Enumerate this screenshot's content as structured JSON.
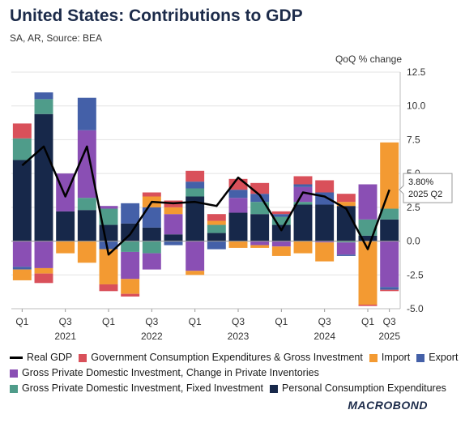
{
  "title": "United States: Contributions to GDP",
  "subtitle": "SA, AR, Source: BEA",
  "brand": "MACROBOND",
  "chart_data": {
    "type": "bar",
    "stacked": true,
    "ylabel": "QoQ % change",
    "ylim": [
      -5.0,
      12.5
    ],
    "yticks": [
      "12.5",
      "10.0",
      "7.5",
      "5.0",
      "2.5",
      "0.0",
      "-2.5",
      "-5.0"
    ],
    "ytick_values": [
      12.5,
      10.0,
      7.5,
      5.0,
      2.5,
      0.0,
      -2.5,
      -5.0
    ],
    "categories": [
      "2021 Q1",
      "2021 Q2",
      "2021 Q3",
      "2021 Q4",
      "2022 Q1",
      "2022 Q2",
      "2022 Q3",
      "2022 Q4",
      "2023 Q1",
      "2023 Q2",
      "2023 Q3",
      "2023 Q4",
      "2024 Q1",
      "2024 Q2",
      "2024 Q3",
      "2024 Q4",
      "2025 Q1",
      "2025 Q2"
    ],
    "x_tick_labels": [
      "Q1",
      "Q3",
      "Q1",
      "Q3",
      "Q1",
      "Q3",
      "Q1",
      "Q3",
      "Q1",
      "Q3"
    ],
    "x_tick_indices": [
      0,
      2,
      4,
      6,
      8,
      10,
      12,
      14,
      16,
      17
    ],
    "year_labels": [
      "2021",
      "2022",
      "2023",
      "2024",
      "2025"
    ],
    "year_indices": [
      2,
      6,
      10,
      14,
      17
    ],
    "series": [
      {
        "name": "Personal Consumption Expenditures",
        "color": "#17284a",
        "values": [
          6.0,
          9.4,
          2.2,
          2.3,
          1.2,
          1.3,
          1.0,
          0.5,
          3.3,
          0.6,
          2.1,
          2.0,
          1.2,
          2.7,
          2.7,
          2.6,
          0.4,
          1.6
        ]
      },
      {
        "name": "Gross Private Domestic Investment, Fixed Investment",
        "color": "#4f9c8a",
        "values": [
          1.6,
          1.1,
          0.0,
          0.9,
          1.2,
          -0.8,
          -0.9,
          0.0,
          0.6,
          0.6,
          0.0,
          0.9,
          0.6,
          0.2,
          0.0,
          -0.1,
          1.2,
          0.8
        ]
      },
      {
        "name": "Gross Private Domestic Investment, Change in Private Inventories",
        "color": "#8a4fb4",
        "values": [
          -1.9,
          -2.0,
          2.8,
          5.0,
          0.2,
          -2.0,
          -1.2,
          1.5,
          -2.2,
          0.0,
          1.1,
          -0.3,
          -0.4,
          1.1,
          -0.1,
          -0.9,
          2.6,
          -3.4
        ]
      },
      {
        "name": "Export",
        "color": "#4460a8",
        "values": [
          -0.2,
          0.5,
          0.0,
          2.4,
          -0.6,
          1.5,
          1.5,
          -0.3,
          0.5,
          -0.6,
          0.6,
          0.6,
          0.2,
          0.2,
          0.9,
          -0.1,
          0.0,
          -0.2
        ]
      },
      {
        "name": "Import",
        "color": "#f39a32",
        "values": [
          -0.8,
          -0.4,
          -0.9,
          -1.6,
          -2.6,
          -1.1,
          0.8,
          0.5,
          -0.3,
          0.3,
          -0.5,
          -0.2,
          -0.7,
          -0.9,
          -1.4,
          0.3,
          -4.7,
          4.9
        ]
      },
      {
        "name": "Government Consumption Expenditures & Gross Investment",
        "color": "#d9505a",
        "values": [
          1.1,
          -0.7,
          0.0,
          0.0,
          -0.5,
          -0.2,
          0.3,
          0.5,
          0.8,
          0.5,
          0.8,
          0.8,
          0.2,
          0.6,
          0.9,
          0.6,
          -0.1,
          -0.1
        ]
      }
    ],
    "line": {
      "name": "Real GDP",
      "color": "#000000",
      "values": [
        5.6,
        7.0,
        3.3,
        7.0,
        -1.0,
        0.5,
        2.9,
        2.8,
        2.9,
        2.6,
        4.7,
        3.4,
        0.8,
        3.6,
        3.3,
        2.4,
        -0.6,
        3.8
      ]
    },
    "callout": {
      "value": "3.80%",
      "period": "2025 Q2"
    },
    "legend_rows": [
      [
        "Real GDP",
        "Government Consumption Expenditures & Gross Investment",
        "Import",
        "Export"
      ],
      [
        "Gross Private Domestic Investment, Change in Private Inventories"
      ],
      [
        "Gross Private Domestic Investment, Fixed Investment",
        "Personal Consumption Expenditures"
      ]
    ]
  }
}
